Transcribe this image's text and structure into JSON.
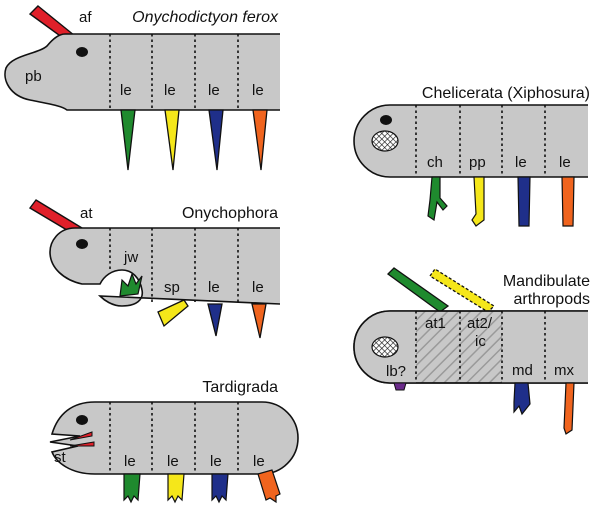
{
  "panels": {
    "onychodictyon": {
      "title": "Onychodictyon ferox",
      "labels": {
        "af": "af",
        "pb": "pb",
        "le1": "le",
        "le2": "le",
        "le3": "le",
        "le4": "le"
      }
    },
    "onychophora": {
      "title": "Onychophora",
      "labels": {
        "at": "at",
        "jw": "jw",
        "sp": "sp",
        "le1": "le",
        "le2": "le"
      }
    },
    "tardigrada": {
      "title": "Tardigrada",
      "labels": {
        "st": "st",
        "le1": "le",
        "le2": "le",
        "le3": "le",
        "le4": "le"
      }
    },
    "chelicerata": {
      "title": "Chelicerata (Xiphosura)",
      "labels": {
        "ch": "ch",
        "pp": "pp",
        "le1": "le",
        "le2": "le"
      }
    },
    "mandibulate": {
      "title_line1": "Mandibulate",
      "title_line2": "arthropods",
      "labels": {
        "at1": "at1",
        "at2_line1": "at2/",
        "at2_line2": "ic",
        "lb": "lb?",
        "md": "md",
        "mx": "mx"
      }
    }
  },
  "colors": {
    "body": "#c8c8c8",
    "outline": "#111111",
    "red": "#e0202a",
    "green": "#1f8a2e",
    "yellow": "#f5e71a",
    "blue": "#1f2f8a",
    "orange": "#f0641e",
    "purple": "#6a2a8a"
  }
}
